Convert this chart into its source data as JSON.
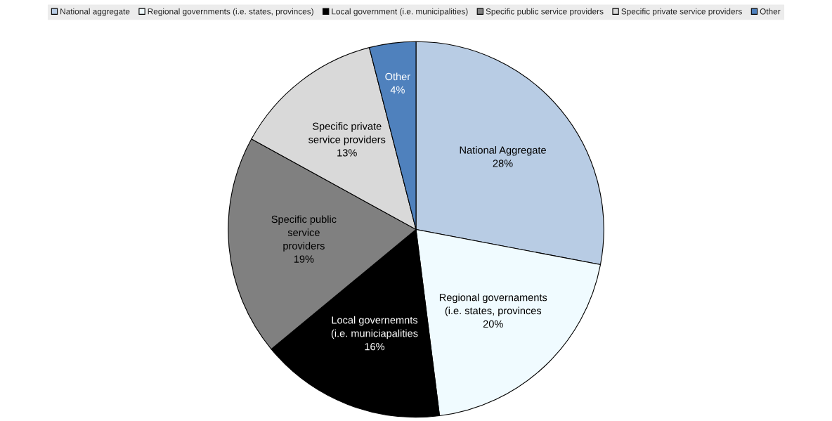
{
  "chart_data": {
    "type": "pie",
    "categories": [
      "National aggregate",
      "Regional governments (i.e. states, provinces)",
      "Local government (i.e. municipalities)",
      "Specific public service providers",
      "Specific private service providers",
      "Other"
    ],
    "values": [
      28,
      20,
      16,
      19,
      13,
      4
    ],
    "colors": [
      "#b8cce4",
      "#f0fbff",
      "#000000",
      "#808080",
      "#d9d9d9",
      "#4f81bd"
    ],
    "value_labels": [
      "National Aggregate\n28%",
      "Regional governaments\n(i.e. states, provinces\n20%",
      "Local governemnts\n(i.e. municiapalities\n16%",
      "Specific public\nservice\nproviders\n19%",
      "Specific private\nservice providers\n13%",
      "Other\n4%"
    ],
    "legend": "top"
  }
}
